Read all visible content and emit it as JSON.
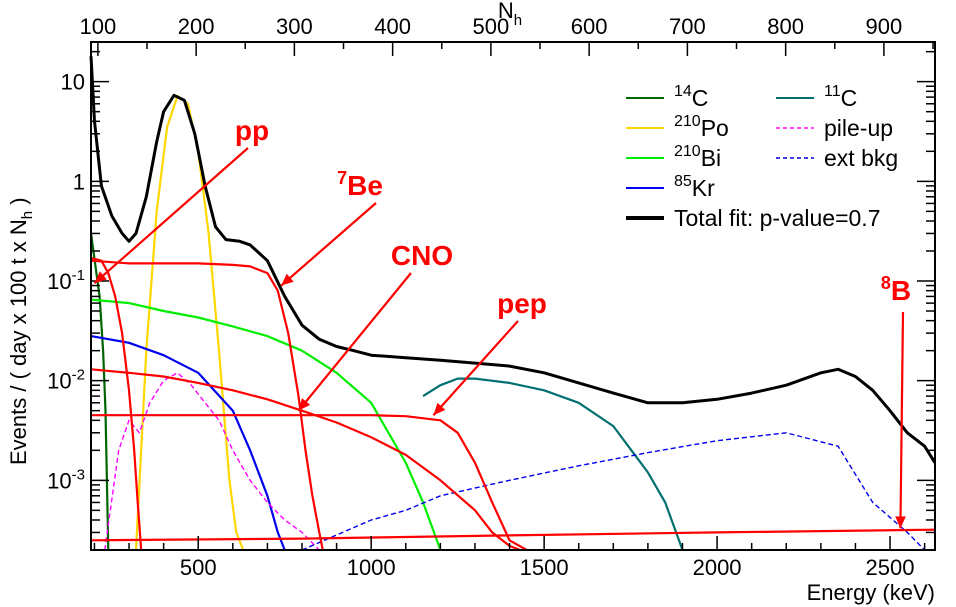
{
  "chart_data": {
    "type": "line",
    "title": "",
    "xlabel": "Energy (keV)",
    "ylabel": "Events / ( day x 100 t x N",
    "ylabel_sub": "h",
    "ylabel_suffix": " )",
    "top_axis_label": "N",
    "top_axis_label_sub": "h",
    "xlim": [
      190,
      2630
    ],
    "ylim": [
      0.0002,
      25
    ],
    "y_log": true,
    "x_ticks": [
      500,
      1000,
      1500,
      2000,
      2500
    ],
    "x_tick_labels": [
      "500",
      "1000",
      "1500",
      "2000",
      "2500"
    ],
    "top_ticks": [
      100,
      200,
      300,
      400,
      500,
      600,
      700,
      800,
      900
    ],
    "top_tick_labels": [
      "100",
      "200",
      "300",
      "400",
      "500",
      "600",
      "700",
      "800",
      "900"
    ],
    "y_ticks": [
      0.001,
      0.01,
      0.1,
      1,
      10
    ],
    "y_tick_labels": [
      {
        "base": "10",
        "exp": "-3"
      },
      {
        "base": "10",
        "exp": "-2"
      },
      {
        "base": "10",
        "exp": "-1"
      },
      {
        "base": "1",
        "exp": ""
      },
      {
        "base": "10",
        "exp": ""
      }
    ],
    "series": [
      {
        "name": "14C",
        "color": "#006400",
        "style": "solid",
        "x": [
          190,
          215,
          225,
          232,
          236,
          240
        ],
        "y": [
          0.3,
          0.07,
          0.02,
          0.005,
          0.001,
          0.0002
        ]
      },
      {
        "name": "210Po",
        "color": "#ffd700",
        "style": "solid",
        "x": [
          320,
          350,
          380,
          410,
          440,
          470,
          500,
          530,
          560,
          590,
          610,
          630
        ],
        "y": [
          0.0002,
          0.02,
          0.5,
          3.5,
          7.2,
          6.0,
          2.0,
          0.3,
          0.02,
          0.001,
          0.0003,
          0.0002
        ]
      },
      {
        "name": "210Bi",
        "color": "#00ee00",
        "style": "solid",
        "x": [
          190,
          300,
          400,
          500,
          600,
          700,
          800,
          900,
          1000,
          1050,
          1100,
          1150,
          1200
        ],
        "y": [
          0.065,
          0.06,
          0.05,
          0.043,
          0.035,
          0.028,
          0.02,
          0.012,
          0.006,
          0.003,
          0.0015,
          0.0006,
          0.0002
        ]
      },
      {
        "name": "85Kr",
        "color": "#0000ee",
        "style": "solid",
        "x": [
          190,
          300,
          400,
          500,
          600,
          650,
          700,
          730,
          750
        ],
        "y": [
          0.028,
          0.024,
          0.018,
          0.012,
          0.005,
          0.002,
          0.0007,
          0.0003,
          0.0002
        ]
      },
      {
        "name": "11C",
        "color": "#007070",
        "style": "solid",
        "x": [
          1150,
          1200,
          1250,
          1300,
          1400,
          1500,
          1600,
          1700,
          1800,
          1850,
          1900
        ],
        "y": [
          0.007,
          0.009,
          0.0105,
          0.0105,
          0.0095,
          0.008,
          0.006,
          0.0035,
          0.0012,
          0.0006,
          0.0002
        ]
      },
      {
        "name": "pile-up",
        "color": "#ff00ff",
        "style": "dashed",
        "x": [
          230,
          270,
          300,
          330,
          360,
          400,
          440,
          480,
          520,
          560,
          600,
          650,
          700,
          750,
          800,
          850
        ],
        "y": [
          0.0002,
          0.002,
          0.004,
          0.003,
          0.006,
          0.01,
          0.012,
          0.009,
          0.006,
          0.004,
          0.002,
          0.001,
          0.0006,
          0.0004,
          0.0003,
          0.0002
        ]
      },
      {
        "name": "ext bkg",
        "color": "#0000ee",
        "style": "dashed",
        "x": [
          800,
          1000,
          1100,
          1200,
          1400,
          1600,
          1800,
          2000,
          2200,
          2350,
          2450,
          2550,
          2600
        ],
        "y": [
          0.0002,
          0.0004,
          0.0005,
          0.0007,
          0.001,
          0.0014,
          0.0019,
          0.0025,
          0.003,
          0.0022,
          0.0006,
          0.0003,
          0.0002
        ]
      },
      {
        "name": "pp",
        "color": "#ff0000",
        "style": "solid",
        "x": [
          190,
          220,
          240,
          260,
          280,
          300,
          315,
          325,
          335
        ],
        "y": [
          0.17,
          0.16,
          0.12,
          0.07,
          0.03,
          0.008,
          0.002,
          0.0006,
          0.0002
        ]
      },
      {
        "name": "7Be",
        "color": "#ff0000",
        "style": "solid",
        "x": [
          190,
          300,
          400,
          500,
          600,
          650,
          700,
          730,
          760,
          790,
          810,
          830,
          850,
          860
        ],
        "y": [
          0.16,
          0.15,
          0.15,
          0.15,
          0.145,
          0.14,
          0.12,
          0.08,
          0.03,
          0.007,
          0.002,
          0.0007,
          0.0003,
          0.0002
        ]
      },
      {
        "name": "CNO",
        "color": "#ff0000",
        "style": "solid",
        "x": [
          190,
          300,
          400,
          500,
          600,
          700,
          800,
          900,
          1000,
          1100,
          1200,
          1300,
          1350,
          1400,
          1430
        ],
        "y": [
          0.013,
          0.012,
          0.011,
          0.0095,
          0.008,
          0.0065,
          0.005,
          0.0038,
          0.0027,
          0.0018,
          0.001,
          0.0005,
          0.0003,
          0.00022,
          0.0002
        ]
      },
      {
        "name": "pep",
        "color": "#ff0000",
        "style": "solid",
        "x": [
          190,
          400,
          600,
          800,
          1000,
          1100,
          1200,
          1250,
          1300,
          1350,
          1400,
          1450
        ],
        "y": [
          0.0045,
          0.0045,
          0.0045,
          0.0045,
          0.0045,
          0.0044,
          0.004,
          0.003,
          0.0015,
          0.0006,
          0.00025,
          0.0002
        ]
      },
      {
        "name": "8B",
        "color": "#ff0000",
        "style": "solid",
        "x": [
          190,
          800,
          1400,
          2000,
          2630
        ],
        "y": [
          0.00025,
          0.00026,
          0.00028,
          0.0003,
          0.00032
        ]
      },
      {
        "name": "Total fit",
        "color": "#000000",
        "style": "solid",
        "x": [
          190,
          200,
          220,
          250,
          280,
          300,
          320,
          350,
          380,
          400,
          430,
          460,
          490,
          520,
          550,
          580,
          620,
          650,
          700,
          750,
          800,
          850,
          900,
          950,
          1000,
          1100,
          1200,
          1300,
          1400,
          1500,
          1600,
          1700,
          1800,
          1900,
          2000,
          2100,
          2200,
          2300,
          2350,
          2400,
          2450,
          2500,
          2550,
          2600,
          2630
        ],
        "y": [
          18,
          4,
          0.9,
          0.45,
          0.3,
          0.25,
          0.3,
          0.7,
          2.5,
          5,
          7.3,
          6.5,
          3,
          0.9,
          0.35,
          0.26,
          0.25,
          0.23,
          0.16,
          0.07,
          0.036,
          0.026,
          0.022,
          0.02,
          0.018,
          0.017,
          0.016,
          0.015,
          0.014,
          0.012,
          0.0095,
          0.0075,
          0.006,
          0.006,
          0.0065,
          0.0075,
          0.009,
          0.012,
          0.013,
          0.011,
          0.008,
          0.005,
          0.003,
          0.0022,
          0.0015
        ]
      }
    ],
    "legend": [
      {
        "label": "C",
        "sup": "14",
        "color": "#006400",
        "style": "solid"
      },
      {
        "label": "Po",
        "sup": "210",
        "color": "#ffd700",
        "style": "solid"
      },
      {
        "label": "Bi",
        "sup": "210",
        "color": "#00ee00",
        "style": "solid"
      },
      {
        "label": "Kr",
        "sup": "85",
        "color": "#0000ee",
        "style": "solid"
      },
      {
        "label": "C",
        "sup": "11",
        "color": "#007070",
        "style": "solid"
      },
      {
        "label": "pile-up",
        "sup": "",
        "color": "#ff00ff",
        "style": "dashed"
      },
      {
        "label": "ext bkg",
        "sup": "",
        "color": "#0000ee",
        "style": "dashed"
      },
      {
        "label": "Total fit: p-value=0.7",
        "sup": "",
        "color": "#000000",
        "style": "thick"
      }
    ],
    "annotations": [
      {
        "label": "pp",
        "sup": "",
        "target_x": 200,
        "target_y": 0.095
      },
      {
        "label": "Be",
        "sup": "7",
        "target_x": 740,
        "target_y": 0.09
      },
      {
        "label": "CNO",
        "sup": "",
        "target_x": 790,
        "target_y": 0.005
      },
      {
        "label": "pep",
        "sup": "",
        "target_x": 1180,
        "target_y": 0.0045
      },
      {
        "label": "B",
        "sup": "8",
        "target_x": 2530,
        "target_y": 0.00033
      }
    ]
  }
}
